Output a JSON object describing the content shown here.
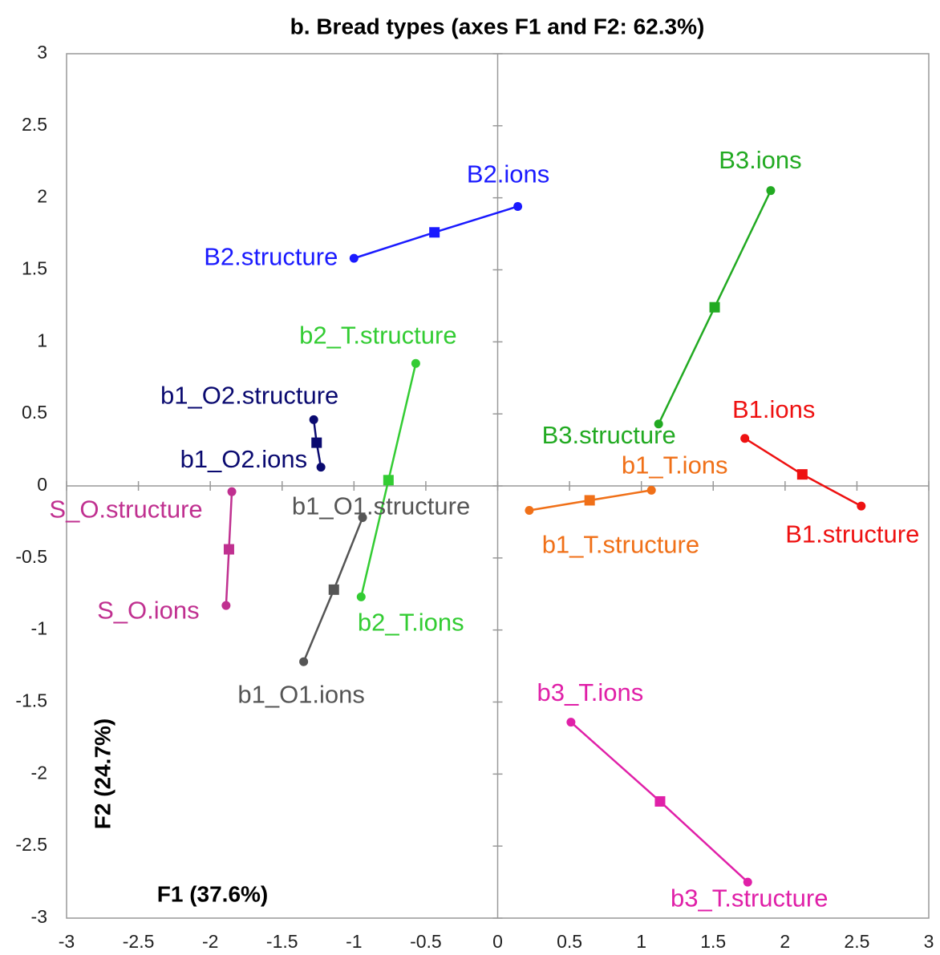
{
  "chart_data": {
    "type": "scatter",
    "title": "b. Bread types (axes F1 and F2: 62.3%)",
    "x_label": "F1 (37.6%)",
    "y_label": "F2 (24.7%)",
    "xlim": [
      -3,
      3
    ],
    "ylim": [
      -3,
      3
    ],
    "xticks": [
      -3,
      -2.5,
      -2,
      -1.5,
      -1,
      -0.5,
      0,
      0.5,
      1,
      1.5,
      2,
      2.5,
      3
    ],
    "yticks": [
      -3,
      -2.5,
      -2,
      -1.5,
      -1,
      -0.5,
      0,
      0.5,
      1,
      1.5,
      2,
      2.5,
      3
    ],
    "series": [
      {
        "color": "#1a1aff",
        "points": [
          {
            "label": "B2.structure",
            "x": -1.0,
            "y": 1.58
          },
          {
            "x": -0.44,
            "y": 1.76
          },
          {
            "label": "B2.ions",
            "x": 0.14,
            "y": 1.94
          }
        ]
      },
      {
        "color": "#22aa22",
        "points": [
          {
            "label": "B3.structure",
            "x": 1.12,
            "y": 0.43
          },
          {
            "x": 1.51,
            "y": 1.24
          },
          {
            "label": "B3.ions",
            "x": 1.9,
            "y": 2.05
          }
        ]
      },
      {
        "color": "#ee1111",
        "points": [
          {
            "label": "B1.structure",
            "x": 2.53,
            "y": -0.14
          },
          {
            "x": 2.12,
            "y": 0.08
          },
          {
            "label": "B1.ions",
            "x": 1.72,
            "y": 0.33
          }
        ]
      },
      {
        "color": "#f07018",
        "points": [
          {
            "label": "b1_T.structure",
            "x": 0.22,
            "y": -0.17
          },
          {
            "x": 0.64,
            "y": -0.1
          },
          {
            "label": "b1_T.ions",
            "x": 1.07,
            "y": -0.03
          }
        ]
      },
      {
        "color": "#e020a8",
        "points": [
          {
            "label": "b3_T.structure",
            "x": 1.74,
            "y": -2.75
          },
          {
            "x": 1.13,
            "y": -2.19
          },
          {
            "label": "b3_T.ions",
            "x": 0.51,
            "y": -1.64
          }
        ]
      },
      {
        "color": "#33cc33",
        "points": [
          {
            "label": "b2_T.structure",
            "x": -0.57,
            "y": 0.85
          },
          {
            "x": -0.76,
            "y": 0.04
          },
          {
            "label": "b2_T.ions",
            "x": -0.95,
            "y": -0.77
          }
        ]
      },
      {
        "color": "#555555",
        "points": [
          {
            "label": "b1_O1.structure",
            "x": -0.94,
            "y": -0.22
          },
          {
            "x": -1.14,
            "y": -0.72
          },
          {
            "label": "b1_O1.ions",
            "x": -1.35,
            "y": -1.22
          }
        ]
      },
      {
        "color": "#0a0a70",
        "points": [
          {
            "label": "b1_O2.structure",
            "x": -1.28,
            "y": 0.46
          },
          {
            "x": -1.26,
            "y": 0.3
          },
          {
            "label": "b1_O2.ions",
            "x": -1.23,
            "y": 0.13
          }
        ]
      },
      {
        "color": "#c03090",
        "points": [
          {
            "label": "S_O.structure",
            "x": -1.85,
            "y": -0.04
          },
          {
            "x": -1.87,
            "y": -0.44
          },
          {
            "label": "S_O.ions",
            "x": -1.89,
            "y": -0.83
          }
        ]
      }
    ]
  }
}
